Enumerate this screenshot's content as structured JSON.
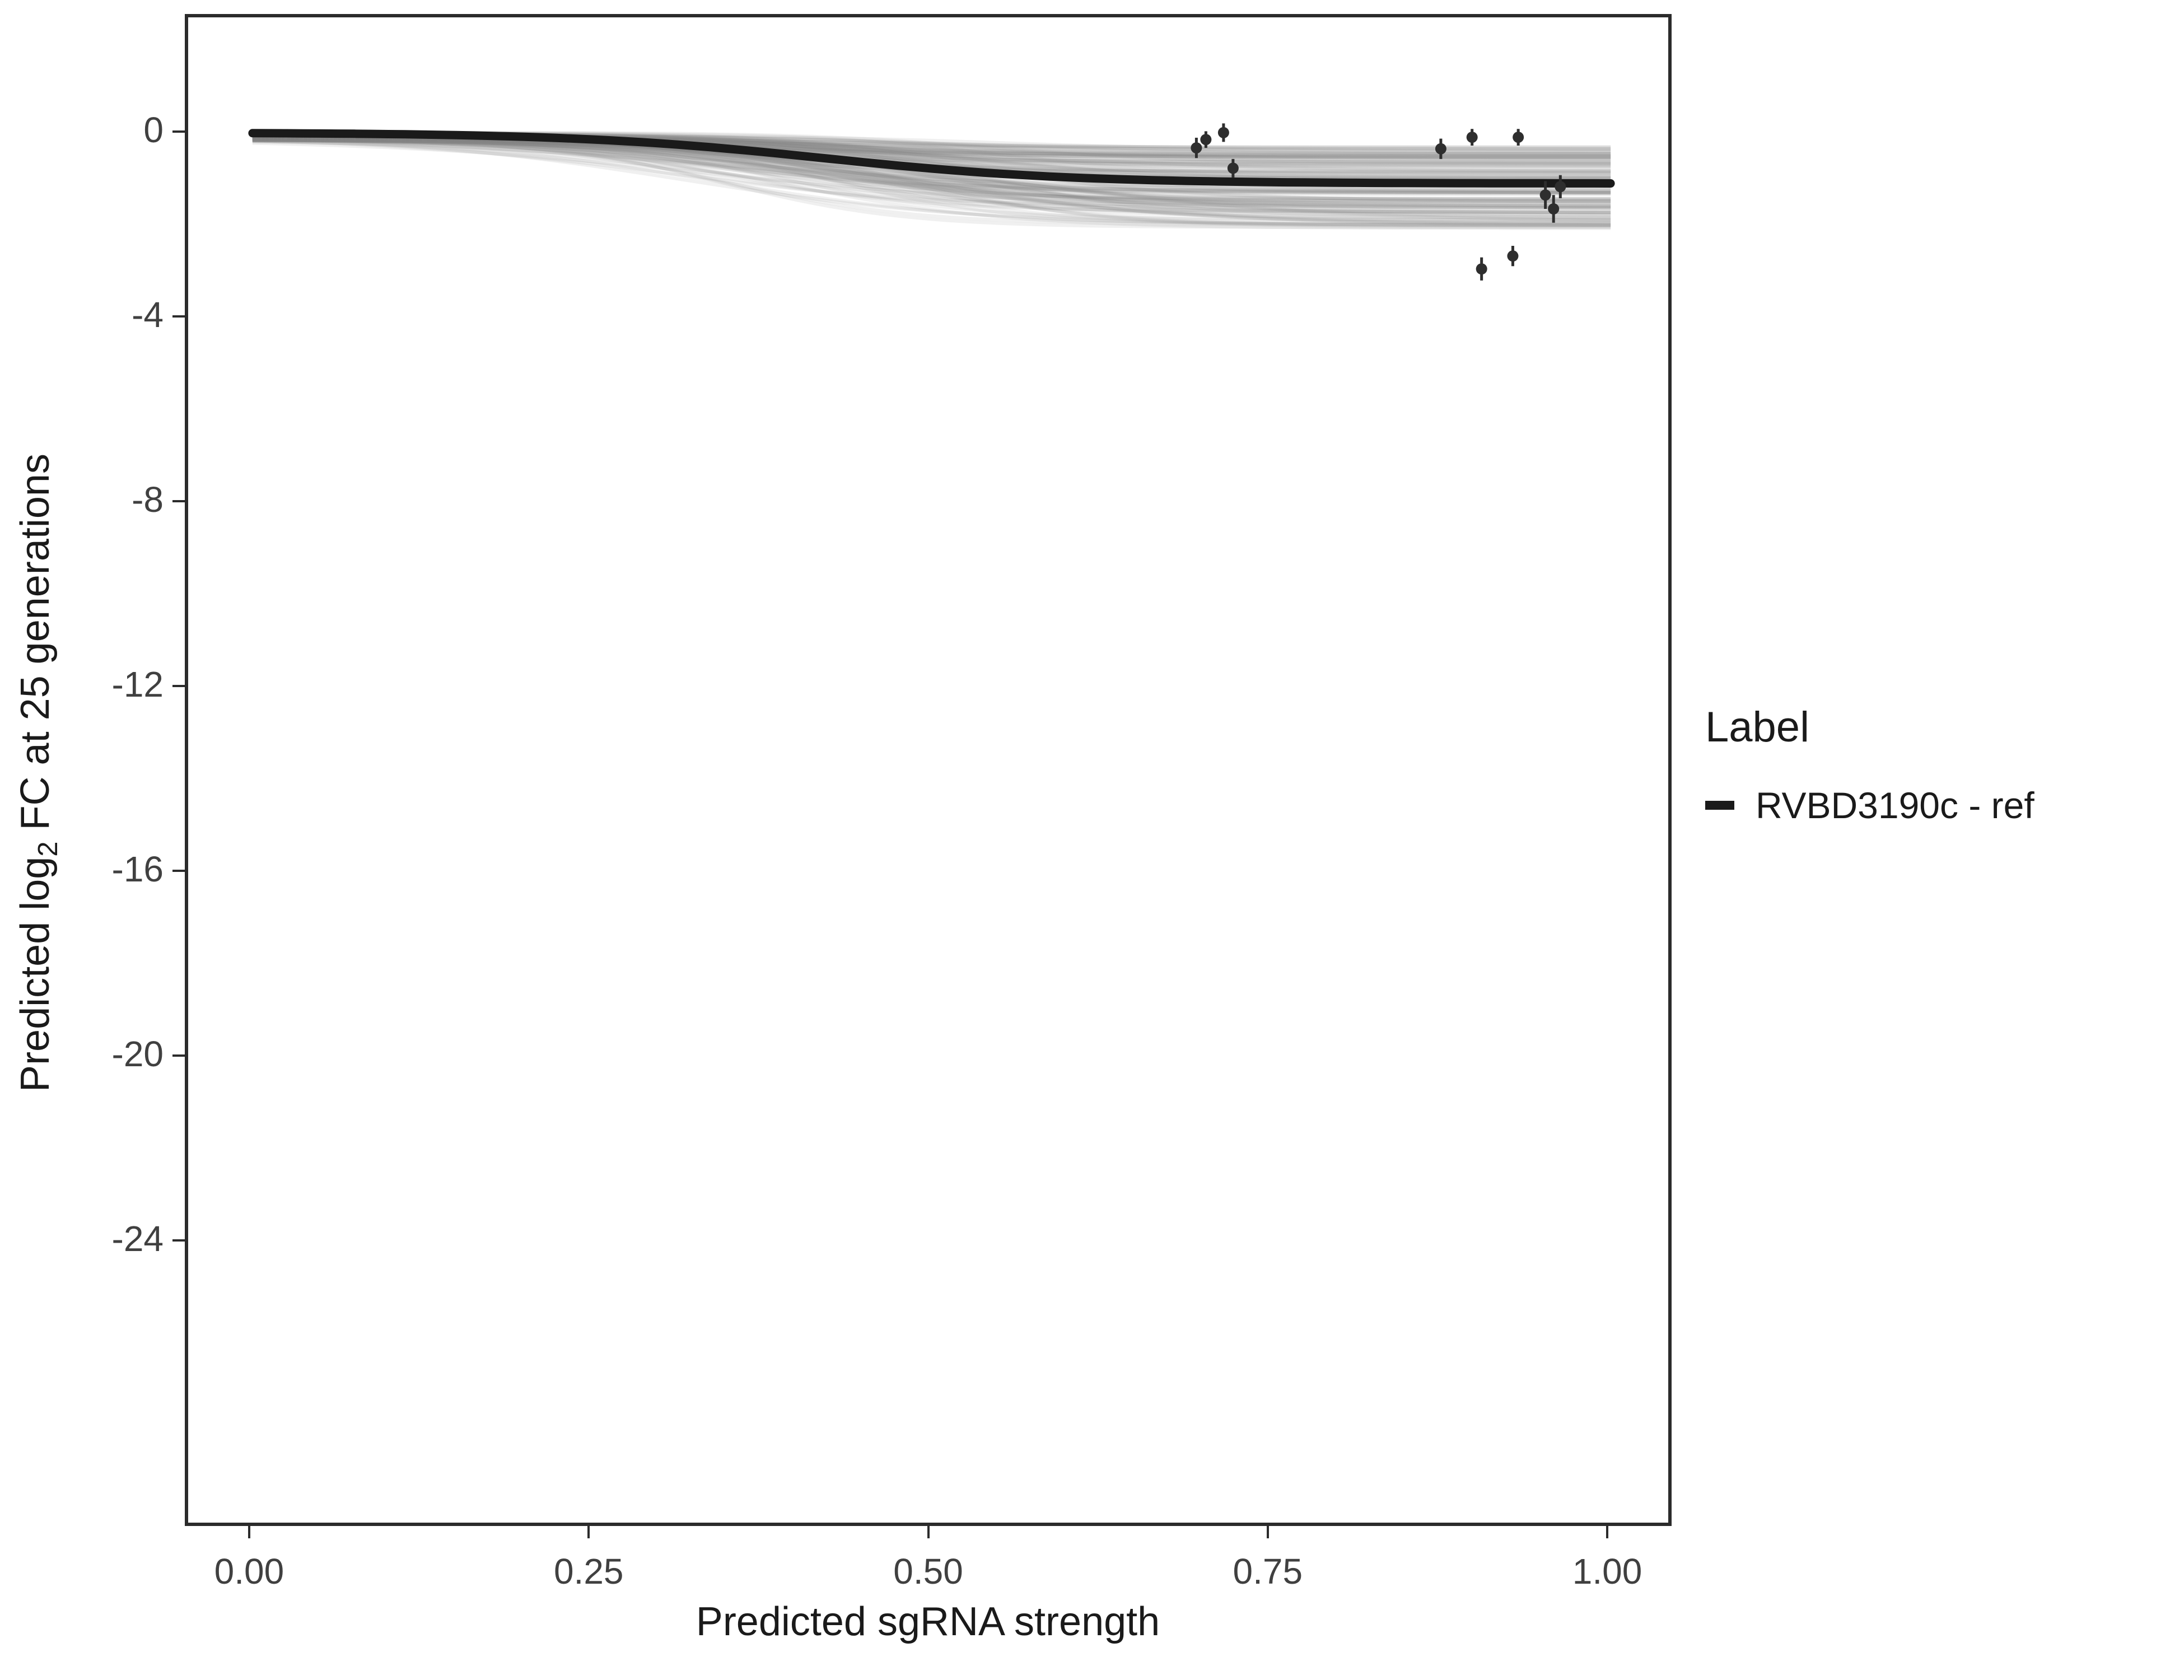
{
  "chart_data": {
    "type": "line",
    "title": "",
    "xlabel": "Predicted sgRNA strength",
    "ylabel_parts": {
      "prefix": "Predicted  log",
      "sub": "2",
      "suffix": " FC at 25 generations"
    },
    "xlim": [
      -0.0474,
      1.0474
    ],
    "ylim": [
      -30.18,
      2.545
    ],
    "grid": "off",
    "x_ticks": {
      "values": [
        0,
        0.25,
        0.5,
        0.75,
        1.0
      ],
      "labels": [
        "0.00",
        "0.25",
        "0.50",
        "0.75",
        "1.00"
      ]
    },
    "y_ticks": {
      "values": [
        0,
        -4,
        -8,
        -12,
        -16,
        -20,
        -24
      ],
      "labels": [
        "0",
        "-4",
        "-8",
        "-12",
        "-16",
        "-20",
        "-24"
      ]
    },
    "legend": {
      "title": "Label",
      "position": "right",
      "entries": [
        {
          "label": "RVBD3190c - ref",
          "color": "#1a1a1a"
        }
      ]
    },
    "reference_curve": {
      "name": "RVBD3190c - ref",
      "shape": "sigmoid",
      "start": 0.05,
      "plateau": -1.05,
      "midpoint": 0.42,
      "slope": 11,
      "color": "#1a1a1a",
      "width": 15
    },
    "posterior_draws": {
      "description": "ensemble of translucent sigmoid fits forming gray band from ~0 down to ~-2",
      "seed": 42,
      "count": 140,
      "start_range": [
        -0.12,
        0.06
      ],
      "plateau_range": [
        -2.05,
        -0.25
      ],
      "midpoint_range": [
        0.3,
        0.55
      ],
      "slope_range": [
        8,
        16
      ],
      "color": "#858585",
      "opacity": 0.12,
      "width": 6
    },
    "points": {
      "color": "#2e2e2e",
      "radius": 10,
      "errorbar_width": 5,
      "data": [
        {
          "x": 0.695,
          "y": -0.28,
          "err": 0.22
        },
        {
          "x": 0.702,
          "y": -0.1,
          "err": 0.18
        },
        {
          "x": 0.715,
          "y": 0.05,
          "err": 0.2
        },
        {
          "x": 0.722,
          "y": -0.72,
          "err": 0.2
        },
        {
          "x": 0.875,
          "y": -0.3,
          "err": 0.22
        },
        {
          "x": 0.898,
          "y": -0.05,
          "err": 0.18
        },
        {
          "x": 0.905,
          "y": -2.9,
          "err": 0.25
        },
        {
          "x": 0.928,
          "y": -2.62,
          "err": 0.22
        },
        {
          "x": 0.932,
          "y": -0.05,
          "err": 0.18
        },
        {
          "x": 0.952,
          "y": -1.3,
          "err": 0.3
        },
        {
          "x": 0.958,
          "y": -1.6,
          "err": 0.3
        },
        {
          "x": 0.963,
          "y": -1.12,
          "err": 0.25
        }
      ]
    }
  }
}
